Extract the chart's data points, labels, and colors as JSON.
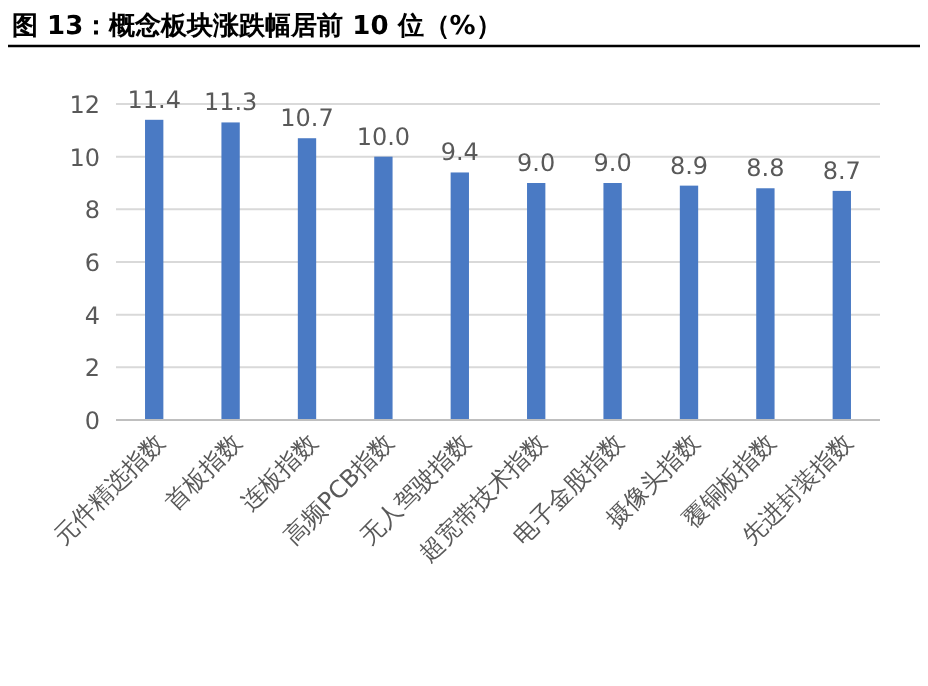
{
  "chart_data": {
    "type": "bar",
    "title": "图 13：概念板块涨跌幅居前 10 位（%）",
    "categories": [
      "元件精选指数",
      "首板指数",
      "连板指数",
      "高频PCB指数",
      "无人驾驶指数",
      "超宽带技术指数",
      "电子金股指数",
      "摄像头指数",
      "覆铜板指数",
      "先进封装指数"
    ],
    "values": [
      11.4,
      11.3,
      10.7,
      10.0,
      9.4,
      9.0,
      9.0,
      8.9,
      8.8,
      8.7
    ],
    "value_labels": [
      "11.4",
      "11.3",
      "10.7",
      "10.0",
      "9.4",
      "9.0",
      "9.0",
      "8.9",
      "8.8",
      "8.7"
    ],
    "color": "#4a7ac4",
    "ylim": [
      0,
      12
    ],
    "yticks": [
      0,
      2,
      4,
      6,
      8,
      10,
      12
    ],
    "grid": "y"
  }
}
